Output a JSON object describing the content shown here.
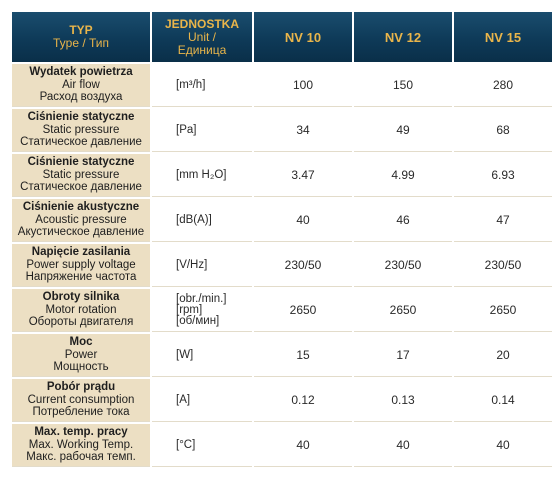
{
  "header": {
    "type_pl": "TYP",
    "type_sub": "Type / Тип",
    "unit_pl": "JEDNOSTKA",
    "unit_en": "Unit /",
    "unit_ru": "Единица",
    "models": [
      "NV 10",
      "NV 12",
      "NV 15"
    ]
  },
  "rows": [
    {
      "pl": "Wydatek powietrza",
      "en": "Air flow",
      "ru": "Расход воздуха",
      "unit": [
        "[m³/h]"
      ],
      "values": [
        "100",
        "150",
        "280"
      ]
    },
    {
      "pl": "Ciśnienie statyczne",
      "en": "Static pressure",
      "ru": "Статическое давление",
      "unit": [
        "[Pa]"
      ],
      "values": [
        "34",
        "49",
        "68"
      ]
    },
    {
      "pl": "Ciśnienie statyczne",
      "en": "Static pressure",
      "ru": "Статическое давление",
      "unit": [
        "[mm H₂O]"
      ],
      "values": [
        "3.47",
        "4.99",
        "6.93"
      ]
    },
    {
      "pl": "Ciśnienie akustyczne",
      "en": "Acoustic pressure",
      "ru": "Акустическое давление",
      "unit": [
        "[dB(A)]"
      ],
      "values": [
        "40",
        "46",
        "47"
      ]
    },
    {
      "pl": "Napięcie zasilania",
      "en": "Power supply voltage",
      "ru": "Напряжение частота",
      "unit": [
        "[V/Hz]"
      ],
      "values": [
        "230/50",
        "230/50",
        "230/50"
      ]
    },
    {
      "pl": "Obroty silnika",
      "en": "Motor rotation",
      "ru": "Обороты двигателя",
      "unit": [
        "[obr./min.]",
        "[rpm]",
        "[об/мин]"
      ],
      "values": [
        "2650",
        "2650",
        "2650"
      ]
    },
    {
      "pl": "Moc",
      "en": "Power",
      "ru": "Мощность",
      "unit": [
        "[W]"
      ],
      "values": [
        "15",
        "17",
        "20"
      ]
    },
    {
      "pl": "Pobór prądu",
      "en": "Current consumption",
      "ru": "Потребление тока",
      "unit": [
        "[A]"
      ],
      "values": [
        "0.12",
        "0.13",
        "0.14"
      ]
    },
    {
      "pl": "Max. temp. pracy",
      "en": "Max. Working Temp.",
      "ru": "Макс. рабочая темп.",
      "unit": [
        "[°C]"
      ],
      "values": [
        "40",
        "40",
        "40"
      ]
    }
  ]
}
